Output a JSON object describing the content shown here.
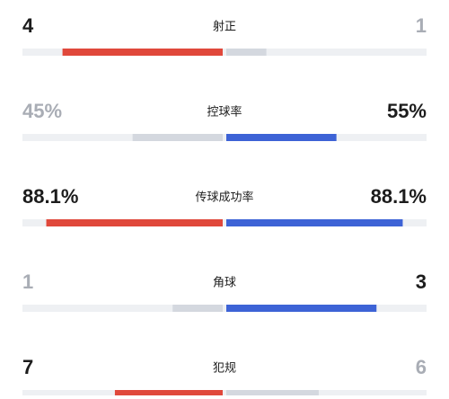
{
  "stats": [
    {
      "name": "射正",
      "home": 4,
      "away": 1
    },
    {
      "name": "控球率",
      "home": {
        "value": 45,
        "label": "45%"
      },
      "away": {
        "value": 55,
        "label": "55%"
      }
    },
    {
      "name": "传球成功率",
      "home": {
        "value": 88.1,
        "label": "88.1%"
      },
      "away": {
        "value": 88.1,
        "label": "88.1%"
      }
    },
    {
      "name": "角球",
      "home": 1,
      "away": 3
    },
    {
      "name": "犯规",
      "home": 7,
      "away": 6
    }
  ],
  "colors": {
    "home": "#e0483b",
    "away": "#3d63d6",
    "lower": "#d4d8df",
    "track": "#eef0f3",
    "lower_text": "#a9adb5",
    "text": "#1c1c1c"
  }
}
